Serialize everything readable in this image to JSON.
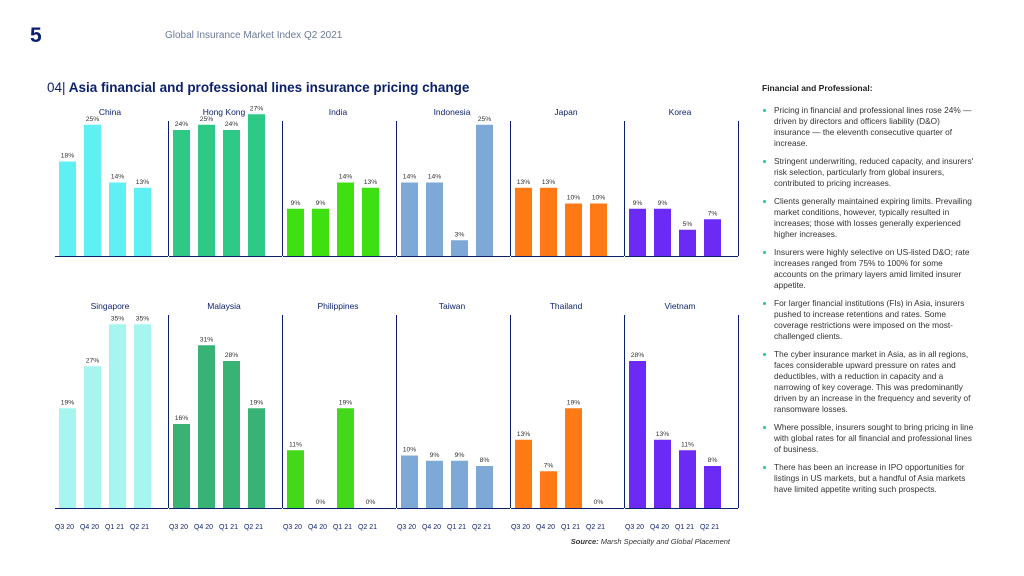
{
  "page_number": "5",
  "header": "Global Insurance Market Index Q2 2021",
  "title_prefix": "04|",
  "title": "Asia financial and professional lines insurance pricing change",
  "source_label": "Source:",
  "source_text": "Marsh Specialty and Global Placement",
  "sidebar": {
    "title": "Financial and Professional:",
    "bullets": [
      "Pricing in financial and professional lines rose 24% — driven by directors and officers liability (D&O) insurance — the eleventh consecutive quarter of increase.",
      "Stringent underwriting, reduced capacity, and insurers' risk selection, particularly from global insurers, contributed to pricing increases.",
      "Clients generally maintained expiring limits. Prevailing market conditions, however, typically resulted in increases; those with losses generally experienced higher increases.",
      "Insurers were highly selective on US-listed D&O; rate increases ranged from 75% to 100% for some accounts on the primary layers amid limited insurer appetite.",
      "For larger financial institutions (FIs) in Asia, insurers pushed to increase retentions and rates. Some coverage restrictions were imposed on the most-challenged clients.",
      "The cyber insurance market in Asia, as in all regions, faces considerable upward pressure on rates and deductibles, with a reduction in capacity and a narrowing of key coverage. This was predominantly driven by an increase in the frequency and severity of ransomware losses.",
      "Where possible, insurers sought to bring pricing in line with global rates for all financial and professional lines of business.",
      "There has been an increase in IPO opportunities for listings in US markets, but a handful of Asia markets have limited appetite writing such prospects."
    ]
  },
  "chart_data": {
    "type": "bar",
    "title": "Asia financial and professional lines insurance pricing change",
    "categories": [
      "Q3 20",
      "Q4 20",
      "Q1 21",
      "Q2 21"
    ],
    "value_suffix": "%",
    "ylim": [
      0,
      35
    ],
    "panels": [
      {
        "name": "China",
        "values": [
          18,
          25,
          14,
          13
        ],
        "color": "#5ff0f3"
      },
      {
        "name": "Hong Kong",
        "values": [
          24,
          25,
          24,
          27
        ],
        "color": "#2ec987"
      },
      {
        "name": "India",
        "values": [
          9,
          9,
          14,
          13
        ],
        "color": "#3ee012"
      },
      {
        "name": "Indonesia",
        "values": [
          14,
          14,
          3,
          25
        ],
        "color": "#7ea9d6"
      },
      {
        "name": "Japan",
        "values": [
          13,
          13,
          10,
          10
        ],
        "color": "#ff7a14"
      },
      {
        "name": "Korea",
        "values": [
          9,
          9,
          5,
          7
        ],
        "color": "#6b2bf5"
      },
      {
        "name": "Singapore",
        "values": [
          19,
          27,
          35,
          35
        ],
        "color": "#a6f5ef"
      },
      {
        "name": "Malaysia",
        "values": [
          16,
          31,
          28,
          19
        ],
        "color": "#38b375"
      },
      {
        "name": "Philippines",
        "values": [
          11,
          0,
          19,
          0
        ],
        "color": "#44d81a"
      },
      {
        "name": "Taiwan",
        "values": [
          10,
          9,
          9,
          8
        ],
        "color": "#7ea9d6"
      },
      {
        "name": "Thailand",
        "values": [
          13,
          7,
          19,
          0
        ],
        "color": "#ff7a14"
      },
      {
        "name": "Vietnam",
        "values": [
          28,
          13,
          11,
          8
        ],
        "color": "#6b2bf5"
      }
    ]
  }
}
